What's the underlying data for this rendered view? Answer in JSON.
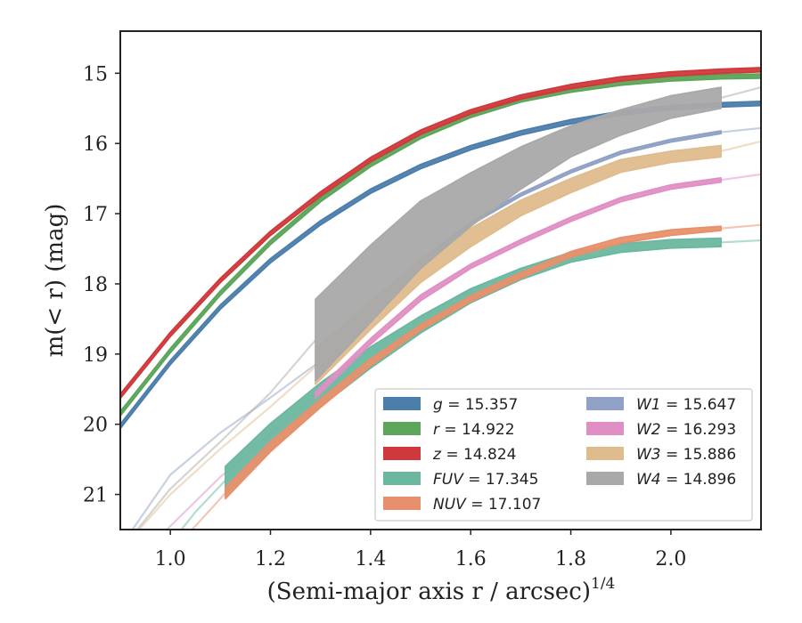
{
  "chart_data": {
    "type": "line",
    "xlabel": "(Semi-major axis r / arcsec)",
    "xlabel_superscript": "1/4",
    "ylabel": "m(< r) (mag)",
    "xlim": [
      0.9,
      2.18
    ],
    "ylim": [
      21.5,
      14.4
    ],
    "y_inverted": true,
    "x_ticks": [
      1.0,
      1.2,
      1.4,
      1.6,
      1.8,
      2.0
    ],
    "x_tick_labels": [
      "1.0",
      "1.2",
      "1.4",
      "1.6",
      "1.8",
      "2.0"
    ],
    "y_ticks": [
      15,
      16,
      17,
      18,
      19,
      20,
      21
    ],
    "y_tick_labels": [
      "15",
      "16",
      "17",
      "18",
      "19",
      "20",
      "21"
    ],
    "grid": false,
    "legend_position": "lower-right",
    "series": [
      {
        "name": "g = 15.357",
        "color": "#4c7eac",
        "x": [
          0.9,
          1.0,
          1.1,
          1.2,
          1.3,
          1.4,
          1.5,
          1.6,
          1.7,
          1.8,
          1.9,
          2.0,
          2.1,
          2.18
        ],
        "y": [
          20.03,
          19.12,
          18.33,
          17.67,
          17.13,
          16.68,
          16.33,
          16.06,
          15.85,
          15.69,
          15.57,
          15.49,
          15.45,
          15.43
        ],
        "band": [
          0.03,
          0.03,
          0.03,
          0.03,
          0.03,
          0.03,
          0.03,
          0.03,
          0.03,
          0.03,
          0.03,
          0.03,
          0.03,
          0.03
        ],
        "faint_x": [],
        "faint_y": []
      },
      {
        "name": "r = 14.922",
        "color": "#5ca55a",
        "x": [
          0.9,
          1.0,
          1.1,
          1.2,
          1.3,
          1.4,
          1.5,
          1.6,
          1.7,
          1.8,
          1.9,
          2.0,
          2.1,
          2.18
        ],
        "y": [
          19.85,
          18.95,
          18.13,
          17.41,
          16.8,
          16.3,
          15.9,
          15.6,
          15.38,
          15.24,
          15.14,
          15.08,
          15.05,
          15.04
        ],
        "band": [
          0.03,
          0.03,
          0.03,
          0.03,
          0.03,
          0.03,
          0.03,
          0.03,
          0.03,
          0.03,
          0.03,
          0.03,
          0.03,
          0.03
        ],
        "faint_x": [],
        "faint_y": []
      },
      {
        "name": "z = 14.824",
        "color": "#d0393b",
        "x": [
          0.9,
          1.0,
          1.1,
          1.2,
          1.3,
          1.4,
          1.5,
          1.6,
          1.7,
          1.8,
          1.9,
          2.0,
          2.1,
          2.18
        ],
        "y": [
          19.6,
          18.72,
          17.95,
          17.28,
          16.72,
          16.23,
          15.84,
          15.55,
          15.34,
          15.19,
          15.08,
          15.01,
          14.97,
          14.95
        ],
        "band": [
          0.03,
          0.03,
          0.03,
          0.03,
          0.03,
          0.03,
          0.03,
          0.03,
          0.03,
          0.03,
          0.03,
          0.03,
          0.03,
          0.03
        ],
        "faint_x": [],
        "faint_y": []
      },
      {
        "name": "FUV = 17.345",
        "color": "#6bb7a0",
        "x": [
          1.11,
          1.2,
          1.3,
          1.4,
          1.5,
          1.6,
          1.7,
          1.8,
          1.9,
          2.0,
          2.1
        ],
        "y": [
          20.8,
          20.18,
          19.58,
          19.05,
          18.58,
          18.17,
          17.86,
          17.62,
          17.49,
          17.43,
          17.41
        ],
        "band": [
          0.2,
          0.19,
          0.17,
          0.15,
          0.12,
          0.1,
          0.08,
          0.07,
          0.06,
          0.06,
          0.06
        ],
        "faint_x": [
          0.95,
          1.0,
          1.05,
          1.11,
          2.1,
          2.18
        ],
        "faint_y": [
          21.9,
          21.7,
          21.25,
          20.8,
          17.41,
          17.38
        ]
      },
      {
        "name": "NUV = 17.107",
        "color": "#e8906b",
        "x": [
          1.11,
          1.2,
          1.3,
          1.4,
          1.5,
          1.6,
          1.7,
          1.8,
          1.9,
          2.0,
          2.1
        ],
        "y": [
          20.98,
          20.32,
          19.7,
          19.12,
          18.62,
          18.21,
          17.88,
          17.58,
          17.38,
          17.27,
          17.21
        ],
        "band": [
          0.08,
          0.07,
          0.06,
          0.05,
          0.04,
          0.04,
          0.04,
          0.04,
          0.04,
          0.04,
          0.03
        ],
        "faint_x": [
          0.95,
          1.0,
          1.05,
          1.11,
          2.1,
          2.18
        ],
        "faint_y": [
          21.9,
          21.8,
          21.45,
          20.98,
          17.21,
          17.16
        ]
      },
      {
        "name": "W1 = 15.647",
        "color": "#8fa1c6",
        "x": [
          1.29,
          1.4,
          1.5,
          1.6,
          1.7,
          1.8,
          1.9,
          2.0,
          2.1
        ],
        "y": [
          19.15,
          18.35,
          17.68,
          17.14,
          16.73,
          16.4,
          16.13,
          15.96,
          15.84
        ],
        "band": [
          0.02,
          0.02,
          0.02,
          0.02,
          0.02,
          0.02,
          0.02,
          0.02,
          0.02
        ],
        "faint_x": [
          0.9,
          1.0,
          1.1,
          1.2,
          1.29,
          2.1,
          2.18
        ],
        "faint_y": [
          21.75,
          20.72,
          20.12,
          19.62,
          19.15,
          15.84,
          15.78
        ]
      },
      {
        "name": "W2 = 16.293",
        "color": "#e08fc4",
        "x": [
          1.29,
          1.4,
          1.5,
          1.6,
          1.7,
          1.8,
          1.9,
          2.0,
          2.1
        ],
        "y": [
          19.58,
          18.82,
          18.2,
          17.75,
          17.4,
          17.08,
          16.8,
          16.62,
          16.52
        ],
        "band": [
          0.04,
          0.04,
          0.04,
          0.03,
          0.03,
          0.03,
          0.03,
          0.03,
          0.03
        ],
        "faint_x": [
          0.95,
          1.0,
          1.1,
          1.2,
          1.29,
          2.1,
          2.18
        ],
        "faint_y": [
          21.8,
          21.45,
          20.75,
          20.15,
          19.58,
          16.52,
          16.44
        ]
      },
      {
        "name": "W3 = 15.886",
        "color": "#dfbc8d",
        "x": [
          1.29,
          1.4,
          1.5,
          1.6,
          1.7,
          1.8,
          1.9,
          2.0,
          2.1
        ],
        "y": [
          19.18,
          18.45,
          17.82,
          17.34,
          16.92,
          16.6,
          16.32,
          16.19,
          16.11
        ],
        "band": [
          0.25,
          0.2,
          0.16,
          0.13,
          0.11,
          0.1,
          0.09,
          0.08,
          0.08
        ],
        "faint_x": [
          0.9,
          1.0,
          1.1,
          1.2,
          1.29,
          2.1,
          2.18
        ],
        "faint_y": [
          21.8,
          21.0,
          20.35,
          19.75,
          19.18,
          16.11,
          15.97
        ]
      },
      {
        "name": "W4 = 14.896",
        "color": "#a9a9a9",
        "x": [
          1.29,
          1.4,
          1.5,
          1.6,
          1.7,
          1.8,
          1.9,
          2.0,
          2.1
        ],
        "y": [
          18.8,
          18.0,
          17.3,
          16.8,
          16.35,
          15.97,
          15.7,
          15.48,
          15.35
        ],
        "band": [
          0.58,
          0.55,
          0.48,
          0.38,
          0.3,
          0.22,
          0.18,
          0.16,
          0.15
        ],
        "faint_x": [
          0.9,
          1.0,
          1.1,
          1.2,
          1.29,
          2.1,
          2.18
        ],
        "faint_y": [
          21.8,
          20.92,
          20.25,
          19.55,
          18.8,
          15.35,
          15.2
        ]
      }
    ]
  }
}
